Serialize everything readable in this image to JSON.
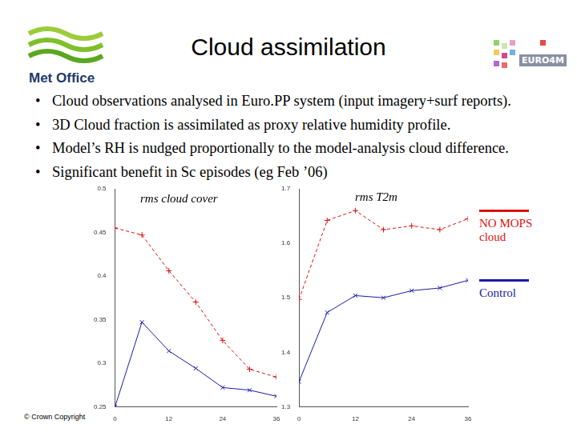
{
  "slide": {
    "title": "Cloud assimilation",
    "logos": {
      "met_office": "Met Office",
      "euro4m": "EURO4M"
    },
    "bullets": [
      "Cloud observations analysed in Euro.PP system (input imagery+surf reports).",
      "3D Cloud fraction is assimilated as proxy relative humidity profile.",
      "Model’s RH is nudged proportionally to the model-analysis cloud difference.",
      "Significant benefit in Sc episodes (eg Feb ’06)"
    ],
    "footer": "© Crown Copyright"
  },
  "chart_data": [
    {
      "type": "line",
      "title": "rms cloud cover",
      "x": [
        0,
        6,
        12,
        18,
        24,
        30,
        36
      ],
      "series": [
        {
          "name": "NO MOPS cloud",
          "color": "#dd1111",
          "line_style": "dashed",
          "marker": "plus",
          "values": [
            0.455,
            0.447,
            0.406,
            0.37,
            0.326,
            0.293,
            0.284
          ]
        },
        {
          "name": "Control",
          "color": "#1a1aa8",
          "line_style": "solid",
          "marker": "x",
          "values": [
            0.25,
            0.347,
            0.314,
            0.294,
            0.272,
            0.269,
            0.262
          ]
        }
      ],
      "xlim": [
        0,
        36
      ],
      "xticks": [
        0,
        12,
        24,
        36
      ],
      "ylim": [
        0.25,
        0.5
      ],
      "yticks": [
        0.25,
        0.3,
        0.35,
        0.4,
        0.45,
        0.5
      ],
      "grid": false,
      "legend": "right"
    },
    {
      "type": "line",
      "title": "rms T2m",
      "x": [
        0,
        6,
        12,
        18,
        24,
        30,
        36
      ],
      "series": [
        {
          "name": "NO MOPS cloud",
          "color": "#dd1111",
          "line_style": "dashed",
          "marker": "plus",
          "values": [
            1.497,
            1.642,
            1.66,
            1.625,
            1.632,
            1.625,
            1.645
          ]
        },
        {
          "name": "Control",
          "color": "#1a1aa8",
          "line_style": "solid",
          "marker": "x",
          "values": [
            1.346,
            1.473,
            1.504,
            1.5,
            1.513,
            1.518,
            1.532
          ]
        }
      ],
      "xlim": [
        0,
        36
      ],
      "xticks": [
        0,
        12,
        24,
        36
      ],
      "ylim": [
        1.3,
        1.7
      ],
      "yticks": [
        1.3,
        1.4,
        1.5,
        1.6,
        1.7
      ],
      "grid": false,
      "legend": "right"
    }
  ]
}
